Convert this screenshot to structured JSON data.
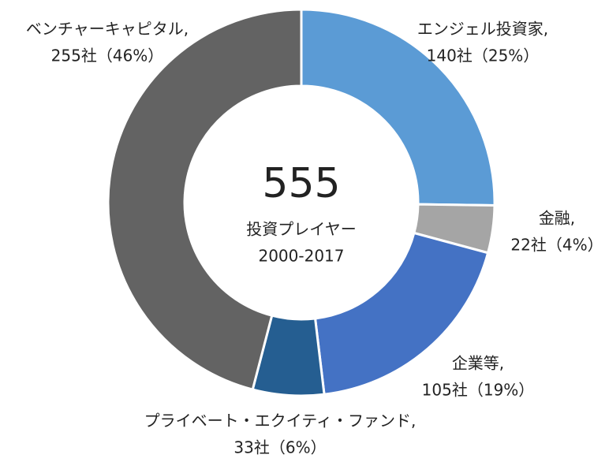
{
  "chart_data": {
    "type": "donut",
    "categories": [
      "エンジェル投資家,",
      "金融,",
      "企業等,",
      "プライベート・エクイティ・ファンド,",
      "ベンチャーキャピタル,"
    ],
    "values": [
      140,
      22,
      105,
      33,
      255
    ],
    "value_labels": [
      "140社（25%）",
      "22社（4%）",
      "105社（19%）",
      "33社（6%）",
      "255社（46%）"
    ],
    "colors": [
      "#5b9bd5",
      "#a5a5a5",
      "#4472c4",
      "#255e91",
      "#636363"
    ],
    "annotations": [
      "555",
      "投資プレイヤー",
      "2000-2017"
    ]
  }
}
